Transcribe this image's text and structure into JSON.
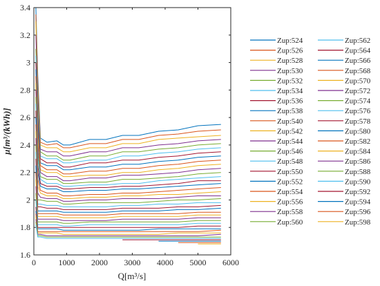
{
  "chart_data": {
    "type": "line",
    "title": "",
    "xlabel": "Q[m³/s]",
    "ylabel": "μ[m³/(kWh)]",
    "xlim": [
      0,
      6000
    ],
    "ylim": [
      1.6,
      3.4
    ],
    "xticks": [
      0,
      1000,
      2000,
      3000,
      4000,
      5000,
      6000
    ],
    "yticks": [
      1.6,
      1.8,
      2.0,
      2.2,
      2.4,
      2.6,
      2.8,
      3.0,
      3.2,
      3.4
    ],
    "xtick_labels": [
      "0",
      "1000",
      "2000",
      "3000",
      "4000",
      "5000",
      "6000"
    ],
    "ytick_labels": [
      "1.6",
      "1.8",
      "2",
      "2.2",
      "2.4",
      "2.6",
      "2.8",
      "3",
      "3.2",
      "3.4"
    ],
    "grid": false,
    "legend_position": "right, two columns",
    "x": [
      60,
      120,
      200,
      400,
      700,
      900,
      1100,
      1700,
      2200,
      2700,
      3200,
      3800,
      4400,
      5000,
      5700
    ],
    "series": [
      {
        "name": "Zup:524",
        "color": "#0072BD",
        "values": [
          3.4,
          2.9,
          2.45,
          2.42,
          2.43,
          2.4,
          2.4,
          2.44,
          2.44,
          2.47,
          2.47,
          2.5,
          2.51,
          2.54,
          2.55
        ]
      },
      {
        "name": "Zup:526",
        "color": "#D95319",
        "values": [
          3.35,
          2.85,
          2.42,
          2.4,
          2.41,
          2.38,
          2.38,
          2.41,
          2.41,
          2.44,
          2.44,
          2.47,
          2.48,
          2.5,
          2.51
        ]
      },
      {
        "name": "Zup:528",
        "color": "#EDB120",
        "values": [
          3.3,
          2.8,
          2.4,
          2.38,
          2.38,
          2.35,
          2.35,
          2.38,
          2.38,
          2.41,
          2.41,
          2.44,
          2.45,
          2.46,
          2.47
        ]
      },
      {
        "name": "Zup:530",
        "color": "#7E2F8E",
        "values": [
          3.2,
          2.75,
          2.37,
          2.35,
          2.35,
          2.32,
          2.32,
          2.35,
          2.35,
          2.38,
          2.38,
          2.4,
          2.41,
          2.43,
          2.44
        ]
      },
      {
        "name": "Zup:532",
        "color": "#77AC30",
        "values": [
          3.1,
          2.7,
          2.35,
          2.32,
          2.32,
          2.29,
          2.29,
          2.32,
          2.32,
          2.35,
          2.35,
          2.37,
          2.38,
          2.4,
          2.41
        ]
      },
      {
        "name": "Zup:534",
        "color": "#4DBEEE",
        "values": [
          3.05,
          2.65,
          2.32,
          2.3,
          2.3,
          2.27,
          2.27,
          2.29,
          2.29,
          2.32,
          2.32,
          2.34,
          2.35,
          2.37,
          2.38
        ]
      },
      {
        "name": "Zup:536",
        "color": "#A2142F",
        "values": [
          3.0,
          2.6,
          2.3,
          2.27,
          2.27,
          2.24,
          2.24,
          2.27,
          2.27,
          2.29,
          2.29,
          2.31,
          2.32,
          2.34,
          2.35
        ]
      },
      {
        "name": "Zup:538",
        "color": "#0072BD",
        "values": [
          2.95,
          2.55,
          2.27,
          2.25,
          2.25,
          2.22,
          2.22,
          2.24,
          2.24,
          2.26,
          2.26,
          2.28,
          2.29,
          2.31,
          2.32
        ]
      },
      {
        "name": "Zup:540",
        "color": "#D95319",
        "values": [
          2.9,
          2.5,
          2.25,
          2.22,
          2.22,
          2.19,
          2.19,
          2.21,
          2.21,
          2.23,
          2.23,
          2.25,
          2.26,
          2.28,
          2.29
        ]
      },
      {
        "name": "Zup:542",
        "color": "#EDB120",
        "values": [
          2.85,
          2.45,
          2.22,
          2.2,
          2.2,
          2.17,
          2.17,
          2.18,
          2.18,
          2.2,
          2.2,
          2.22,
          2.23,
          2.25,
          2.26
        ]
      },
      {
        "name": "Zup:544",
        "color": "#7E2F8E",
        "values": [
          2.8,
          2.4,
          2.2,
          2.17,
          2.17,
          2.14,
          2.14,
          2.16,
          2.16,
          2.18,
          2.18,
          2.19,
          2.2,
          2.22,
          2.23
        ]
      },
      {
        "name": "Zup:546",
        "color": "#77AC30",
        "values": [
          2.75,
          2.35,
          2.17,
          2.15,
          2.15,
          2.12,
          2.12,
          2.13,
          2.13,
          2.15,
          2.15,
          2.16,
          2.17,
          2.19,
          2.2
        ]
      },
      {
        "name": "Zup:548",
        "color": "#4DBEEE",
        "values": [
          2.7,
          2.3,
          2.15,
          2.12,
          2.12,
          2.1,
          2.1,
          2.11,
          2.11,
          2.12,
          2.12,
          2.14,
          2.15,
          2.16,
          2.17
        ]
      },
      {
        "name": "Zup:550",
        "color": "#A2142F",
        "values": [
          2.65,
          2.25,
          2.12,
          2.1,
          2.1,
          2.08,
          2.08,
          2.09,
          2.09,
          2.1,
          2.1,
          2.11,
          2.12,
          2.14,
          2.14
        ]
      },
      {
        "name": "Zup:552",
        "color": "#0072BD",
        "values": [
          2.6,
          2.2,
          2.1,
          2.08,
          2.08,
          2.06,
          2.06,
          2.07,
          2.07,
          2.08,
          2.08,
          2.09,
          2.1,
          2.11,
          2.12
        ]
      },
      {
        "name": "Zup:554",
        "color": "#D95319",
        "values": [
          2.55,
          2.15,
          2.07,
          2.05,
          2.05,
          2.03,
          2.03,
          2.04,
          2.04,
          2.05,
          2.05,
          2.06,
          2.07,
          2.08,
          2.09
        ]
      },
      {
        "name": "Zup:556",
        "color": "#EDB120",
        "values": [
          2.5,
          2.1,
          2.05,
          2.03,
          2.03,
          2.01,
          2.01,
          2.02,
          2.02,
          2.03,
          2.03,
          2.04,
          2.04,
          2.05,
          2.06
        ]
      },
      {
        "name": "Zup:558",
        "color": "#7E2F8E",
        "values": [
          2.45,
          2.05,
          2.02,
          2.01,
          2.01,
          1.99,
          1.99,
          2.0,
          2.0,
          2.01,
          2.01,
          2.01,
          2.02,
          2.03,
          2.03
        ]
      },
      {
        "name": "Zup:560",
        "color": "#77AC30",
        "values": [
          2.4,
          2.0,
          2.0,
          1.99,
          1.99,
          1.97,
          1.97,
          1.98,
          1.98,
          1.98,
          1.98,
          1.99,
          2.0,
          2.0,
          2.01
        ]
      },
      {
        "name": "Zup:562",
        "color": "#4DBEEE",
        "values": [
          2.35,
          1.97,
          1.97,
          1.96,
          1.96,
          1.95,
          1.95,
          1.95,
          1.95,
          1.96,
          1.96,
          1.97,
          1.97,
          1.98,
          1.98
        ]
      },
      {
        "name": "Zup:564",
        "color": "#A2142F",
        "values": [
          2.3,
          1.95,
          1.95,
          1.94,
          1.94,
          1.93,
          1.93,
          1.93,
          1.93,
          1.94,
          1.94,
          1.94,
          1.95,
          1.95,
          1.96
        ]
      },
      {
        "name": "Zup:566",
        "color": "#0072BD",
        "values": [
          2.25,
          1.92,
          1.92,
          1.92,
          1.92,
          1.91,
          1.91,
          1.91,
          1.91,
          1.92,
          1.92,
          1.92,
          1.93,
          1.93,
          1.94
        ]
      },
      {
        "name": "Zup:568",
        "color": "#D95319",
        "values": [
          2.2,
          1.9,
          1.9,
          1.9,
          1.9,
          1.89,
          1.89,
          1.89,
          1.89,
          1.9,
          1.9,
          1.9,
          1.9,
          1.91,
          1.91
        ]
      },
      {
        "name": "Zup:570",
        "color": "#EDB120",
        "values": [
          2.15,
          1.88,
          1.88,
          1.88,
          1.88,
          1.87,
          1.87,
          1.87,
          1.87,
          1.88,
          1.88,
          1.88,
          1.88,
          1.89,
          1.89
        ]
      },
      {
        "name": "Zup:572",
        "color": "#7E2F8E",
        "values": [
          2.1,
          1.86,
          1.86,
          1.86,
          1.86,
          1.85,
          1.85,
          1.85,
          1.85,
          1.86,
          1.86,
          1.86,
          1.86,
          1.87,
          1.87
        ]
      },
      {
        "name": "Zup:574",
        "color": "#77AC30",
        "values": [
          2.05,
          1.84,
          1.84,
          1.84,
          1.84,
          1.83,
          1.83,
          1.84,
          1.84,
          1.84,
          1.84,
          1.84,
          1.84,
          1.85,
          1.85
        ]
      },
      {
        "name": "Zup:576",
        "color": "#4DBEEE",
        "values": [
          2.0,
          1.82,
          1.82,
          1.82,
          1.82,
          1.81,
          1.81,
          1.82,
          1.82,
          1.82,
          1.82,
          1.82,
          1.82,
          1.83,
          1.83
        ]
      },
      {
        "name": "Zup:578",
        "color": "#A2142F",
        "values": [
          1.95,
          1.8,
          1.8,
          1.8,
          1.8,
          1.8,
          1.8,
          1.8,
          1.8,
          1.8,
          1.8,
          1.8,
          1.8,
          1.81,
          1.81
        ]
      },
      {
        "name": "Zup:580",
        "color": "#0072BD",
        "values": [
          1.92,
          1.79,
          1.79,
          1.79,
          1.79,
          1.78,
          1.78,
          1.78,
          1.78,
          1.78,
          1.78,
          1.79,
          1.79,
          1.79,
          1.79
        ]
      },
      {
        "name": "Zup:582",
        "color": "#D95319",
        "values": [
          1.9,
          1.77,
          1.77,
          1.77,
          1.77,
          1.77,
          1.77,
          1.77,
          1.77,
          1.77,
          1.77,
          1.77,
          1.77,
          1.77,
          1.78
        ]
      },
      {
        "name": "Zup:584",
        "color": "#EDB120",
        "values": [
          1.88,
          1.76,
          1.76,
          1.76,
          1.76,
          1.75,
          1.75,
          1.75,
          1.75,
          1.75,
          1.75,
          1.75,
          1.76,
          1.76,
          1.76
        ]
      },
      {
        "name": "Zup:586",
        "color": "#7E2F8E",
        "values": [
          1.86,
          1.75,
          1.75,
          1.74,
          1.74,
          1.74,
          1.74,
          1.74,
          1.74,
          1.74,
          1.74,
          1.74,
          1.74,
          1.74,
          1.75
        ]
      },
      {
        "name": "Zup:588",
        "color": "#77AC30",
        "values": [
          1.84,
          1.74,
          1.74,
          1.73,
          1.73,
          1.73,
          1.73,
          1.73,
          1.73,
          1.73,
          1.73,
          1.73,
          1.73,
          1.73,
          1.73
        ]
      },
      {
        "name": "Zup:590",
        "color": "#4DBEEE",
        "values": [
          1.82,
          1.73,
          1.73,
          1.72,
          1.72,
          1.72,
          1.72,
          1.72,
          1.72,
          1.72,
          1.72,
          1.72,
          1.72,
          1.72,
          1.72
        ]
      },
      {
        "name": "Zup:592",
        "color": "#A2142F",
        "values": [
          null,
          null,
          null,
          null,
          null,
          null,
          null,
          null,
          null,
          1.71,
          1.71,
          1.71,
          1.71,
          1.71,
          1.71
        ]
      },
      {
        "name": "Zup:594",
        "color": "#0072BD",
        "values": [
          null,
          null,
          null,
          null,
          null,
          null,
          null,
          null,
          null,
          null,
          null,
          1.7,
          1.7,
          1.7,
          1.7
        ]
      },
      {
        "name": "Zup:596",
        "color": "#D95319",
        "values": [
          null,
          null,
          null,
          null,
          null,
          null,
          null,
          null,
          null,
          null,
          null,
          null,
          1.69,
          1.69,
          1.69
        ]
      },
      {
        "name": "Zup:598",
        "color": "#EDB120",
        "values": [
          null,
          null,
          null,
          null,
          null,
          null,
          null,
          null,
          null,
          null,
          null,
          null,
          null,
          1.68,
          1.68
        ]
      }
    ]
  }
}
